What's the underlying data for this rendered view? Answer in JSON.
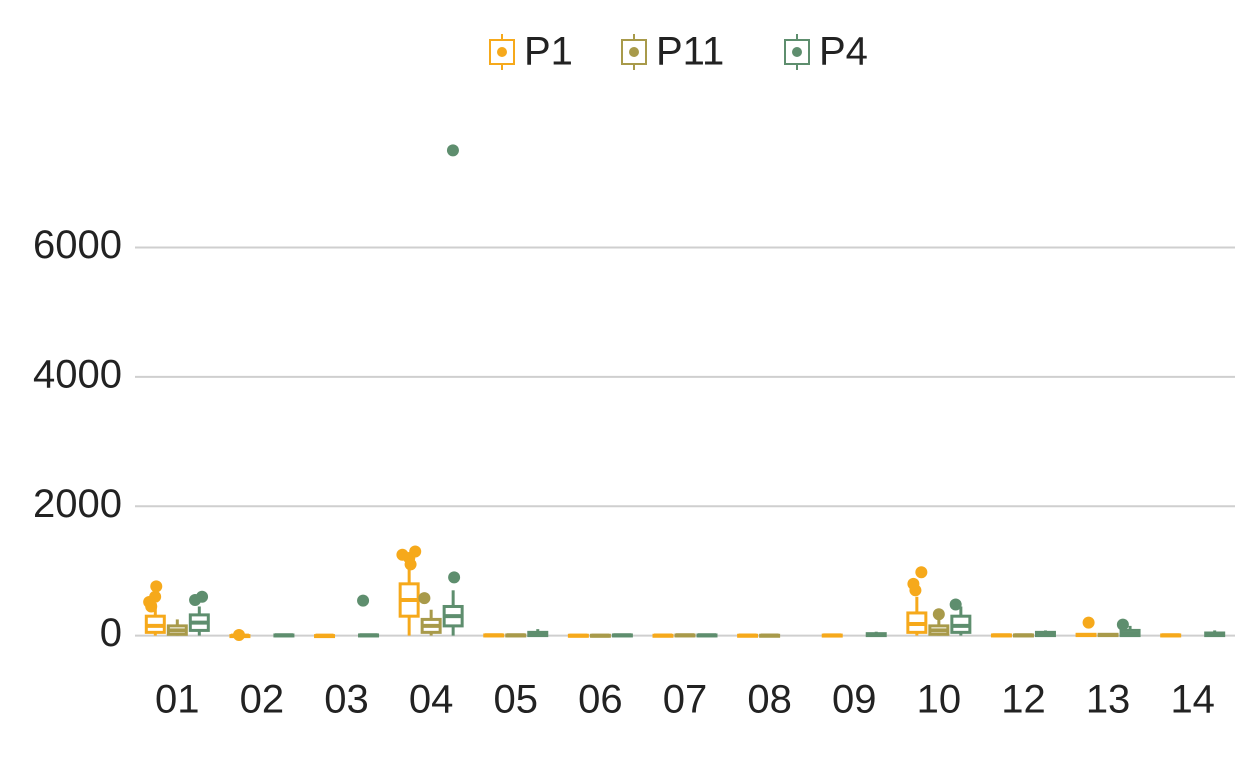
{
  "chart_data": {
    "type": "boxplot",
    "categories": [
      "01",
      "02",
      "03",
      "04",
      "05",
      "06",
      "07",
      "08",
      "09",
      "10",
      "12",
      "13",
      "14"
    ],
    "ylim": [
      -300,
      7800
    ],
    "yticks": [
      0,
      2000,
      4000,
      6000
    ],
    "grid": true,
    "legend": "top",
    "series": [
      {
        "name": "P1",
        "color": "#F6A91B",
        "boxes": [
          {
            "low": 0,
            "q1": 50,
            "median": 150,
            "q3": 300,
            "high": 500
          },
          {
            "low": 0,
            "q1": 0,
            "median": 0,
            "q3": 0,
            "high": 5
          },
          {
            "low": 0,
            "q1": 0,
            "median": 0,
            "q3": 0,
            "high": 5
          },
          {
            "low": 0,
            "q1": 300,
            "median": 550,
            "q3": 800,
            "high": 1150
          },
          {
            "low": 0,
            "q1": 0,
            "median": 5,
            "q3": 10,
            "high": 20
          },
          {
            "low": 0,
            "q1": 0,
            "median": 0,
            "q3": 5,
            "high": 10
          },
          {
            "low": 0,
            "q1": 0,
            "median": 2,
            "q3": 5,
            "high": 10
          },
          {
            "low": 0,
            "q1": 0,
            "median": 2,
            "q3": 5,
            "high": 10
          },
          {
            "low": 0,
            "q1": 0,
            "median": 3,
            "q3": 8,
            "high": 15
          },
          {
            "low": 0,
            "q1": 50,
            "median": 180,
            "q3": 350,
            "high": 600
          },
          {
            "low": 0,
            "q1": 0,
            "median": 5,
            "q3": 10,
            "high": 20
          },
          {
            "low": 0,
            "q1": 0,
            "median": 10,
            "q3": 20,
            "high": 40
          },
          {
            "low": 0,
            "q1": 0,
            "median": 5,
            "q3": 10,
            "high": 20
          }
        ],
        "points": [
          [
            600,
            760,
            520,
            450
          ],
          [
            10
          ],
          [],
          [
            1200,
            1250,
            1300,
            1100
          ],
          [],
          [],
          [],
          [],
          [],
          [
            700,
            800,
            980
          ],
          [],
          [
            200
          ],
          []
        ]
      },
      {
        "name": "P11",
        "color": "#A89A4A",
        "boxes": [
          {
            "low": 0,
            "q1": 20,
            "median": 80,
            "q3": 150,
            "high": 250
          },
          null,
          null,
          {
            "low": 0,
            "q1": 50,
            "median": 150,
            "q3": 250,
            "high": 400
          },
          {
            "low": 0,
            "q1": 0,
            "median": 5,
            "q3": 10,
            "high": 20
          },
          {
            "low": 0,
            "q1": 0,
            "median": 0,
            "q3": 5,
            "high": 10
          },
          {
            "low": 0,
            "q1": 0,
            "median": 5,
            "q3": 10,
            "high": 20
          },
          {
            "low": 0,
            "q1": 0,
            "median": 2,
            "q3": 5,
            "high": 10
          },
          null,
          {
            "low": 0,
            "q1": 20,
            "median": 80,
            "q3": 150,
            "high": 250
          },
          {
            "low": 0,
            "q1": 0,
            "median": 5,
            "q3": 10,
            "high": 20
          },
          {
            "low": 0,
            "q1": 0,
            "median": 10,
            "q3": 20,
            "high": 30
          },
          null
        ],
        "points": [
          [],
          [],
          [],
          [
            580
          ],
          [],
          [],
          [],
          [],
          [],
          [
            330
          ],
          [],
          [],
          []
        ]
      },
      {
        "name": "P4",
        "color": "#5E8E6E",
        "boxes": [
          {
            "low": 0,
            "q1": 80,
            "median": 200,
            "q3": 320,
            "high": 450
          },
          {
            "low": 0,
            "q1": 0,
            "median": 5,
            "q3": 10,
            "high": 20
          },
          {
            "low": 0,
            "q1": 0,
            "median": 5,
            "q3": 10,
            "high": 20
          },
          {
            "low": 0,
            "q1": 150,
            "median": 300,
            "q3": 450,
            "high": 700
          },
          {
            "low": 0,
            "q1": 0,
            "median": 20,
            "q3": 50,
            "high": 100
          },
          {
            "low": 0,
            "q1": 0,
            "median": 5,
            "q3": 10,
            "high": 20
          },
          {
            "low": 0,
            "q1": 0,
            "median": 5,
            "q3": 10,
            "high": 20
          },
          null,
          {
            "low": 0,
            "q1": 0,
            "median": 10,
            "q3": 30,
            "high": 60
          },
          {
            "low": 0,
            "q1": 50,
            "median": 150,
            "q3": 300,
            "high": 450
          },
          {
            "low": 0,
            "q1": 0,
            "median": 20,
            "q3": 50,
            "high": 80
          },
          {
            "low": 0,
            "q1": 0,
            "median": 30,
            "q3": 80,
            "high": 150
          },
          {
            "low": 0,
            "q1": 0,
            "median": 20,
            "q3": 40,
            "high": 80
          }
        ],
        "points": [
          [
            550,
            600
          ],
          [],
          [
            540
          ],
          [
            900,
            7500
          ],
          [],
          [],
          [],
          [],
          [],
          [
            480
          ],
          [],
          [
            170
          ],
          []
        ]
      }
    ]
  }
}
